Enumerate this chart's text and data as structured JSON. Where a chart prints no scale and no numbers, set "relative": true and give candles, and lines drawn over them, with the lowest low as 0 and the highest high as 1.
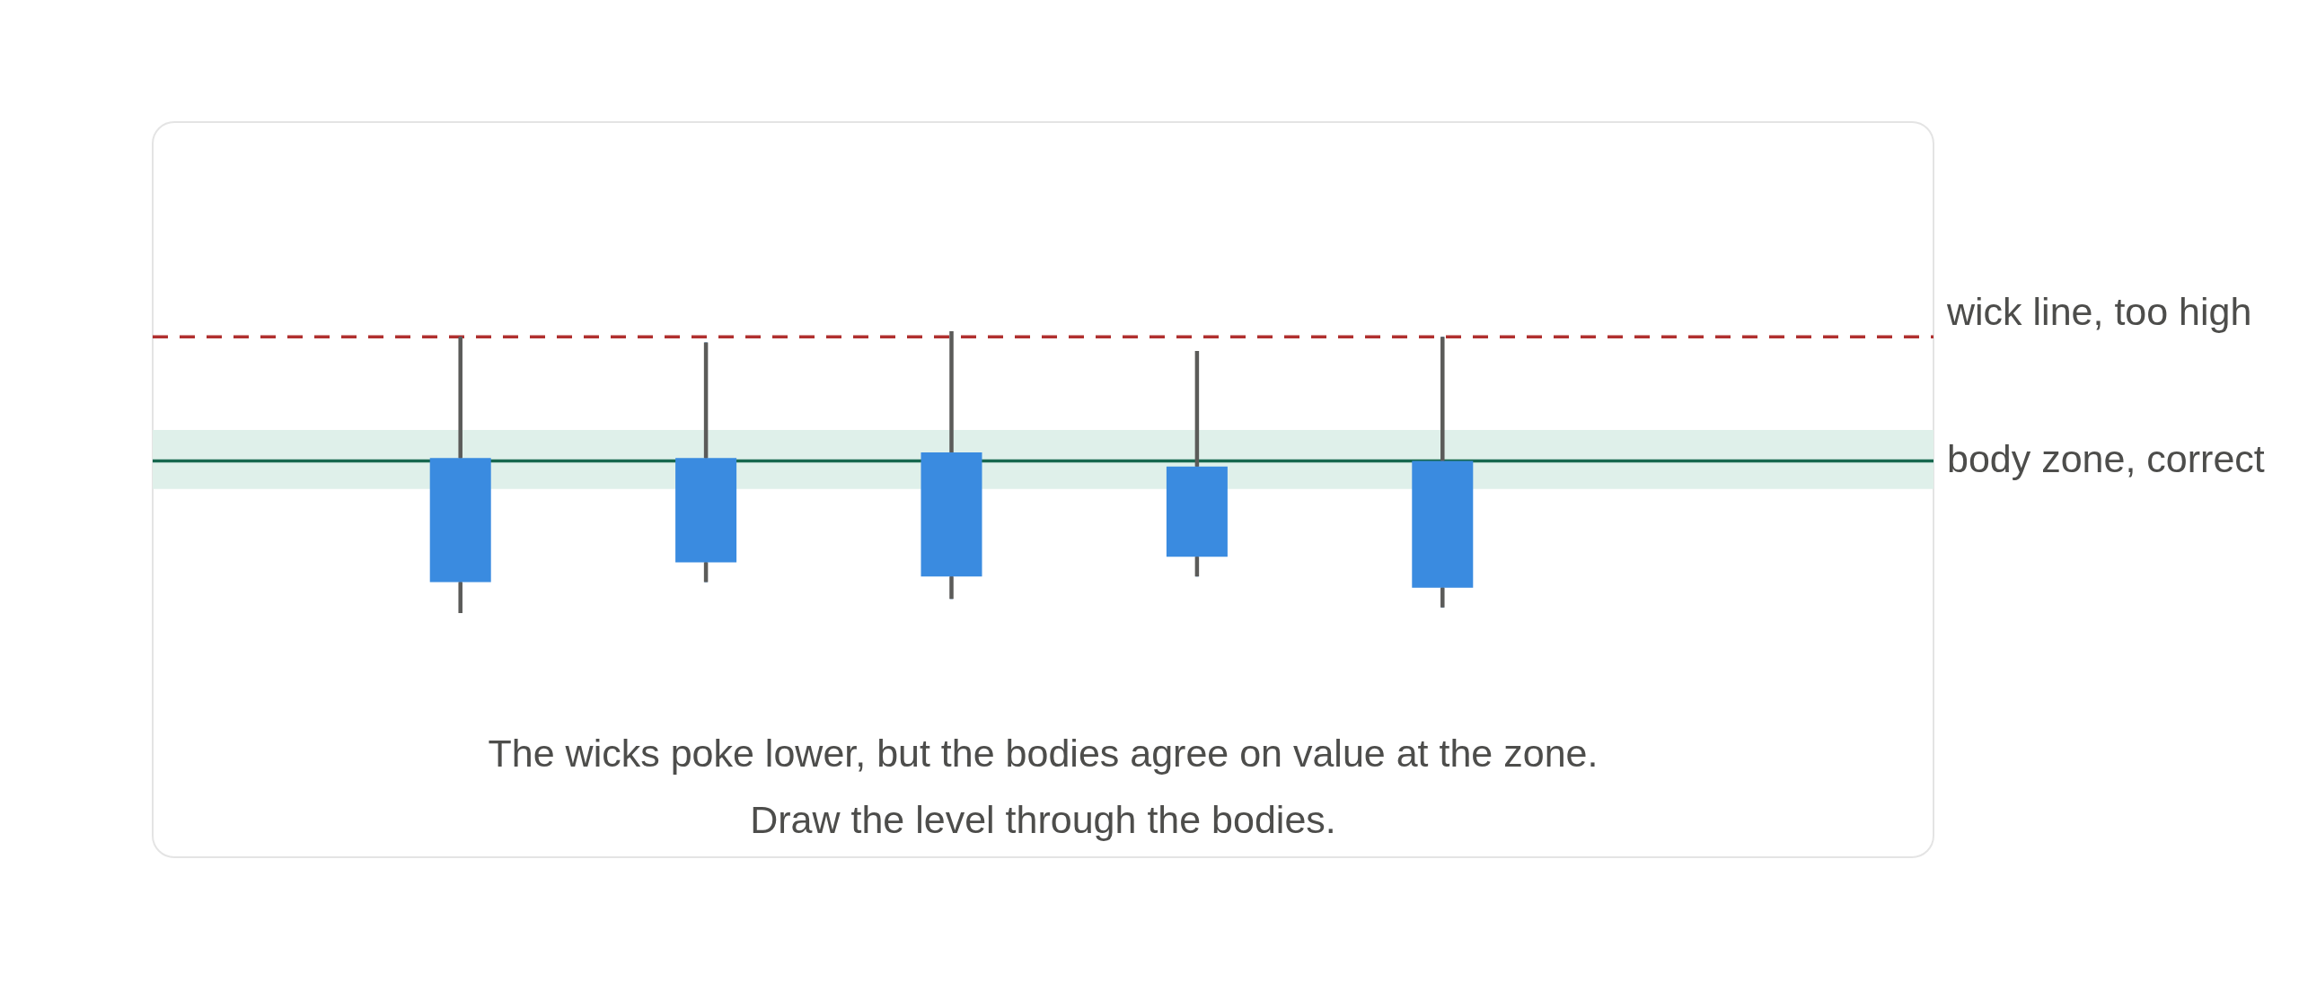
{
  "chart_data": {
    "type": "candlestick",
    "relative": true,
    "categories": [
      null,
      null,
      null,
      null,
      null
    ],
    "ohlc": [
      [
        0.55,
        0.98,
        0,
        0.11
      ],
      [
        0.55,
        0.96,
        0.11,
        0.18
      ],
      [
        0.57,
        1,
        0.05,
        0.13
      ],
      [
        0.52,
        0.93,
        0.13,
        0.2
      ],
      [
        0.54,
        0.98,
        0.02,
        0.09
      ]
    ],
    "color": "#3a8be0",
    "ref_lines": [
      {
        "axis": "y",
        "value": 0.98,
        "label": "wick line, too high",
        "color": "#b0302f",
        "line_style": "dashed"
      },
      {
        "axis": "y",
        "value": 0.54,
        "color": "#17684f",
        "line_style": "solid"
      }
    ],
    "bands": [
      {
        "axis": "y",
        "from": 0.44,
        "to": 0.65,
        "label": "body zone, correct",
        "color": "#dff0ea"
      }
    ],
    "annotations": [
      "The wicks poke lower, but the bodies agree on value at the zone.",
      "Draw the level through the bodies."
    ]
  }
}
